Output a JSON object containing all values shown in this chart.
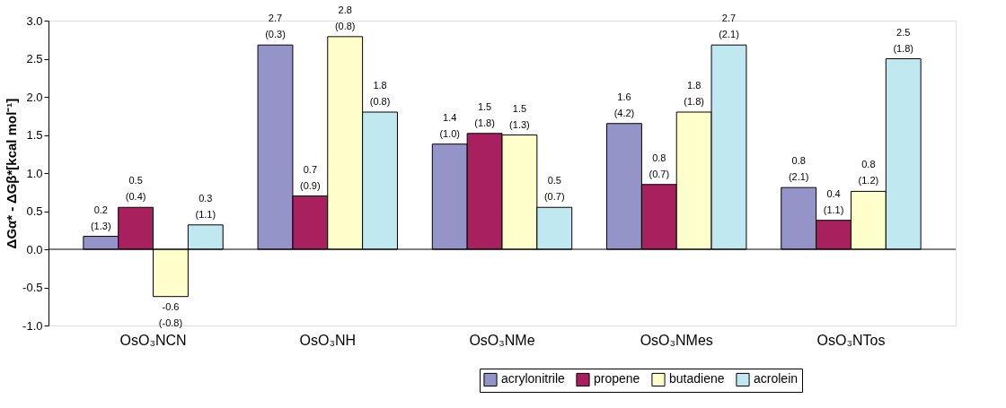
{
  "chart_data": {
    "type": "bar",
    "ylabel": "ΔGα* - ΔGβ*[kcal mol⁻¹]",
    "categories": [
      "OsO₃NCN",
      "OsO₃NH",
      "OsO₃NMe",
      "OsO₃NMes",
      "OsO₃NTos"
    ],
    "series": [
      {
        "name": "acrylonitrile",
        "color": "#9494c8",
        "values": [
          0.17,
          2.68,
          1.38,
          1.65,
          0.81
        ],
        "value_labels": [
          "0.2 (1.3)",
          "2.7 (0.3)",
          "1.4 (1.0)",
          "1.6 (4.2)",
          "0.8 (2.1)"
        ]
      },
      {
        "name": "propene",
        "color": "#a8205e",
        "values": [
          0.55,
          0.7,
          1.52,
          0.85,
          0.38
        ],
        "value_labels": [
          "0.5 (0.4)",
          "0.7 (0.9)",
          "1.5 (1.8)",
          "0.8 (0.7)",
          "0.4 (1.1)"
        ]
      },
      {
        "name": "butadiene",
        "color": "#ffffcc",
        "values": [
          -0.62,
          2.79,
          1.5,
          1.8,
          0.76
        ],
        "value_labels": [
          "-0.6 (-0.8)",
          "2.8 (0.8)",
          "1.5 (1.3)",
          "1.8 (1.8)",
          "0.8 (1.2)"
        ]
      },
      {
        "name": "acrolein",
        "color": "#c0e8f0",
        "values": [
          0.32,
          1.8,
          0.55,
          2.68,
          2.5
        ],
        "value_labels": [
          "0.3 (1.1)",
          "1.8 (0.8)",
          "0.5 (0.7)",
          "2.7 (2.1)",
          "2.5 (1.8)"
        ]
      }
    ],
    "ylim": [
      -1.0,
      3.0
    ],
    "yticks": [
      {
        "value": -1,
        "label": "-1.0"
      },
      {
        "value": -0.5,
        "label": "-0.5"
      },
      {
        "value": 0,
        "label": "0.0"
      },
      {
        "value": 0.5,
        "label": "0.5"
      },
      {
        "value": 1,
        "label": "1.0"
      },
      {
        "value": 1.5,
        "label": "1.5"
      },
      {
        "value": 2,
        "label": "2.0"
      },
      {
        "value": 2.5,
        "label": "2.5"
      },
      {
        "value": 3,
        "label": "3.0"
      }
    ],
    "ref_lines": [
      {
        "axis": "y",
        "value": 0,
        "color": "#000000"
      }
    ],
    "grid": false,
    "legend": "bottom right"
  }
}
